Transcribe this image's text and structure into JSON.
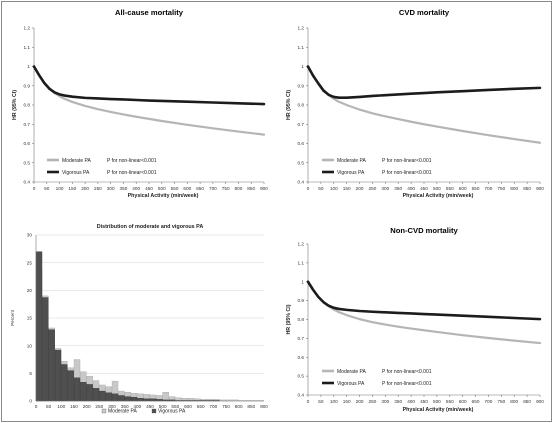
{
  "chart_data": [
    {
      "type": "line",
      "title": "All-cause mortality",
      "xlabel": "Physical Activity (min/week)",
      "ylabel": "HR (95% CI)",
      "xlim": [
        0,
        900
      ],
      "ylim": [
        0.4,
        1.2
      ],
      "x_ticks": [
        "0",
        "50",
        "100",
        "150",
        "200",
        "250",
        "300",
        "350",
        "400",
        "450",
        "500",
        "550",
        "600",
        "650",
        "700",
        "750",
        "800",
        "850",
        "900"
      ],
      "y_ticks": [
        "0.4",
        "0.5",
        "0.6",
        "0.7",
        "0.8",
        "0.9",
        "1",
        "1.1",
        "1.2"
      ],
      "x": [
        0,
        20,
        40,
        60,
        80,
        100,
        120,
        150,
        200,
        250,
        300,
        350,
        400,
        450,
        500,
        600,
        700,
        800,
        900
      ],
      "series": [
        {
          "name": "Moderate PA",
          "note": "P for non-linear<0.001",
          "color": "#b5b5b5",
          "values": [
            1.0,
            0.955,
            0.915,
            0.885,
            0.863,
            0.846,
            0.832,
            0.816,
            0.795,
            0.778,
            0.764,
            0.751,
            0.739,
            0.728,
            0.717,
            0.697,
            0.679,
            0.662,
            0.646
          ]
        },
        {
          "name": "Vigorous PA",
          "note": "P for non-linear<0.001",
          "color": "#1c1c1c",
          "values": [
            1.0,
            0.955,
            0.915,
            0.885,
            0.866,
            0.855,
            0.849,
            0.843,
            0.837,
            0.834,
            0.831,
            0.829,
            0.826,
            0.823,
            0.821,
            0.817,
            0.813,
            0.809,
            0.805
          ]
        }
      ],
      "legend_position": "bottom-left"
    },
    {
      "type": "line",
      "title": "CVD mortality",
      "xlabel": "Physical Activity (min/week)",
      "ylabel": "HR (95% CI)",
      "xlim": [
        0,
        900
      ],
      "ylim": [
        0.4,
        1.2
      ],
      "x_ticks": [
        "0",
        "50",
        "100",
        "150",
        "200",
        "250",
        "300",
        "350",
        "400",
        "450",
        "500",
        "550",
        "600",
        "650",
        "700",
        "750",
        "800",
        "850",
        "900"
      ],
      "y_ticks": [
        "0.4",
        "0.5",
        "0.6",
        "0.7",
        "0.8",
        "0.9",
        "1",
        "1.1",
        "1.2"
      ],
      "x": [
        0,
        20,
        40,
        60,
        80,
        100,
        120,
        150,
        200,
        250,
        300,
        350,
        400,
        450,
        500,
        600,
        700,
        800,
        900
      ],
      "series": [
        {
          "name": "Moderate PA",
          "note": "P for non-linear<0.001",
          "color": "#b5b5b5",
          "values": [
            1.0,
            0.952,
            0.912,
            0.878,
            0.852,
            0.832,
            0.817,
            0.8,
            0.776,
            0.757,
            0.741,
            0.727,
            0.713,
            0.7,
            0.688,
            0.665,
            0.643,
            0.623,
            0.604
          ]
        },
        {
          "name": "Vigorous PA",
          "note": "P for non-linear<0.001",
          "color": "#1c1c1c",
          "values": [
            1.0,
            0.952,
            0.912,
            0.875,
            0.853,
            0.842,
            0.838,
            0.838,
            0.842,
            0.847,
            0.851,
            0.855,
            0.859,
            0.862,
            0.866,
            0.872,
            0.878,
            0.884,
            0.889
          ]
        }
      ],
      "legend_position": "bottom-left"
    },
    {
      "type": "bar",
      "title": "Distribution of moderate and vigorous PA",
      "ylabel": "Percent",
      "xlim": [
        0,
        900
      ],
      "ylim": [
        0,
        30
      ],
      "x_ticks": [
        "0",
        "50",
        "100",
        "150",
        "200",
        "250",
        "300",
        "350",
        "400",
        "450",
        "500",
        "550",
        "600",
        "650",
        "700",
        "750",
        "800",
        "850",
        "900"
      ],
      "y_ticks": [
        "0",
        "5",
        "10",
        "15",
        "20",
        "25",
        "30"
      ],
      "bin_width": 25,
      "bin_starts": [
        0,
        25,
        50,
        75,
        100,
        125,
        150,
        175,
        200,
        225,
        250,
        275,
        300,
        325,
        350,
        375,
        400,
        425,
        450,
        475,
        500,
        525,
        550,
        575,
        600,
        625,
        650,
        675,
        700,
        725,
        750,
        775,
        800,
        825,
        850,
        875
      ],
      "series": [
        {
          "name": "Moderate PA",
          "color": "#c8c8c8",
          "values": [
            24.0,
            19.0,
            13.2,
            9.5,
            7.2,
            6.0,
            7.5,
            5.3,
            4.5,
            3.7,
            2.9,
            2.6,
            3.6,
            1.8,
            1.6,
            1.4,
            1.3,
            1.2,
            1.1,
            1.0,
            1.6,
            0.8,
            0.6,
            0.5,
            0.5,
            0.4,
            0.3,
            0.3,
            0.3,
            0.2,
            0.2,
            0.2,
            0.1,
            0.1,
            0.1,
            0.1
          ]
        },
        {
          "name": "Vigorous PA",
          "color": "#4f4f4f",
          "values": [
            27.0,
            18.7,
            12.9,
            9.2,
            6.6,
            5.5,
            4.2,
            3.4,
            3.0,
            2.3,
            1.8,
            1.5,
            1.3,
            1.0,
            0.8,
            0.7,
            0.5,
            0.4,
            0.4,
            0.3,
            0.2,
            0.2,
            0.1,
            0.1,
            0.1,
            0.1,
            0.1,
            0.1,
            0.1,
            0.0,
            0.0,
            0.0,
            0.0,
            0.0,
            0.0,
            0.0
          ]
        }
      ],
      "legend_position": "bottom"
    },
    {
      "type": "line",
      "title": "Non-CVD mortality",
      "xlabel": "Physical Activity (min/week)",
      "ylabel": "HR (95% CI)",
      "xlim": [
        0,
        900
      ],
      "ylim": [
        0.4,
        1.2
      ],
      "x_ticks": [
        "0",
        "50",
        "100",
        "150",
        "200",
        "250",
        "300",
        "350",
        "400",
        "450",
        "500",
        "550",
        "600",
        "650",
        "700",
        "750",
        "800",
        "850",
        "900"
      ],
      "y_ticks": [
        "0.4",
        "0.5",
        "0.6",
        "0.7",
        "0.8",
        "0.9",
        "1",
        "1.1",
        "1.2"
      ],
      "x": [
        0,
        20,
        40,
        60,
        80,
        100,
        120,
        150,
        200,
        250,
        300,
        350,
        400,
        450,
        500,
        600,
        700,
        800,
        900
      ],
      "series": [
        {
          "name": "Moderate PA",
          "note": "P for non-linear<0.001",
          "color": "#b5b5b5",
          "values": [
            1.0,
            0.957,
            0.92,
            0.892,
            0.87,
            0.853,
            0.839,
            0.823,
            0.802,
            0.786,
            0.773,
            0.762,
            0.752,
            0.743,
            0.734,
            0.717,
            0.702,
            0.688,
            0.675
          ]
        },
        {
          "name": "Vigorous PA",
          "note": "P for non-linear<0.001",
          "color": "#1c1c1c",
          "values": [
            1.0,
            0.957,
            0.92,
            0.892,
            0.873,
            0.862,
            0.856,
            0.851,
            0.845,
            0.841,
            0.838,
            0.835,
            0.832,
            0.829,
            0.826,
            0.82,
            0.814,
            0.808,
            0.802
          ]
        }
      ],
      "legend_position": "bottom-left"
    }
  ]
}
